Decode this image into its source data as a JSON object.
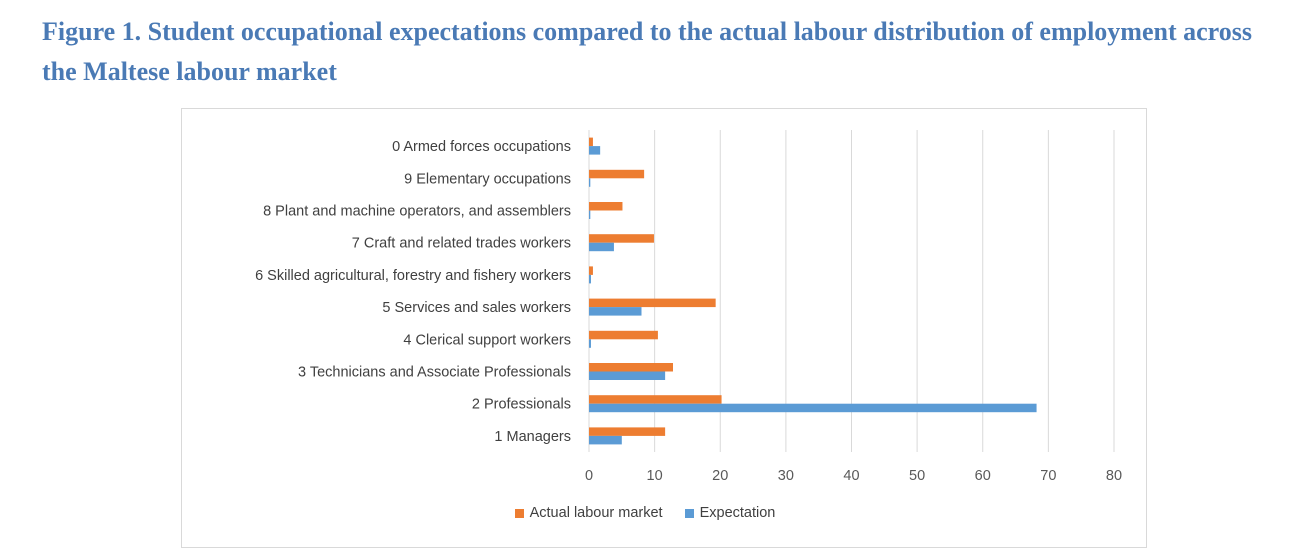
{
  "figure_title": "Figure 1. Student occupational expectations compared to the actual labour distribution of employment across the Maltese labour market",
  "chart_data": {
    "type": "bar",
    "orientation": "horizontal",
    "title": "",
    "xlabel": "",
    "ylabel": "",
    "categories": [
      "0 Armed forces occupations",
      "9 Elementary occupations",
      "8  Plant and machine operators, and assemblers",
      "7 Craft and related trades workers",
      "6 Skilled agricultural, forestry and fishery workers",
      "5 Services and sales workers",
      "4 Clerical support workers",
      "3 Technicians and Associate Professionals",
      "2 Professionals",
      "1 Managers"
    ],
    "series": [
      {
        "name": "Actual labour market",
        "color": "#ed7d31",
        "values": [
          0.6,
          8.4,
          5.1,
          9.9,
          0.6,
          19.3,
          10.5,
          12.8,
          20.2,
          11.6
        ]
      },
      {
        "name": "Expectation",
        "color": "#5b9bd5",
        "values": [
          1.7,
          0.2,
          0.2,
          3.8,
          0.3,
          8.0,
          0.3,
          11.6,
          68.2,
          5.0
        ]
      }
    ],
    "xlim": [
      0,
      80
    ],
    "x_ticks": [
      "0",
      "10",
      "20",
      "30",
      "40",
      "50",
      "60",
      "70",
      "80"
    ],
    "grid": "vertical",
    "legend_position": "bottom"
  }
}
